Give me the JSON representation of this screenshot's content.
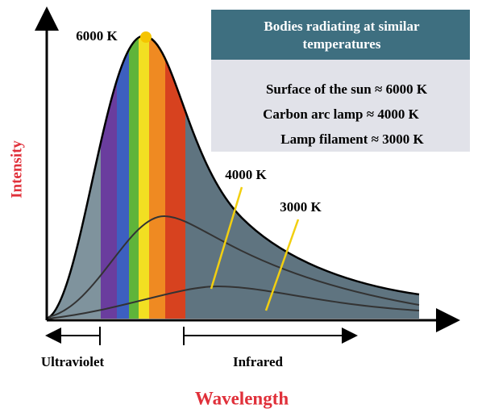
{
  "curves": {
    "peak_label": "6000 K",
    "mid_label": "4000 K",
    "low_label": "3000 K"
  },
  "legend_box": {
    "title": "Bodies radiating at similar temperatures",
    "items": [
      "Surface of the sun ≈ 6000 K",
      "Carbon arc lamp ≈ 4000 K",
      "Lamp filament ≈ 3000 K"
    ]
  },
  "axes": {
    "y_label": "Intensity",
    "x_label": "Wavelength",
    "left_region": "Ultraviolet",
    "right_region": "Infrared"
  }
}
